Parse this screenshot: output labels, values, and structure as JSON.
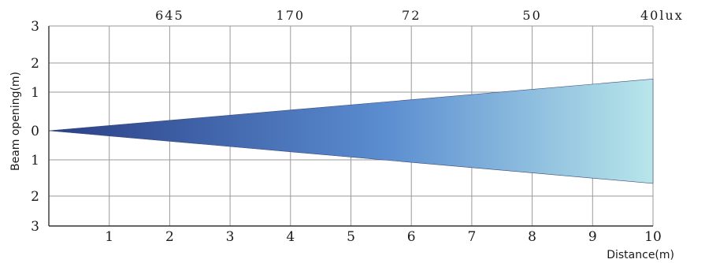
{
  "chart_data": {
    "type": "area",
    "title": "",
    "xlabel": "Distance(m)",
    "ylabel": "Beam opening(m)",
    "x_ticks": [
      "1",
      "2",
      "3",
      "4",
      "5",
      "6",
      "7",
      "8",
      "9",
      "10"
    ],
    "y_ticks_top": [
      "3",
      "2",
      "1"
    ],
    "y_tick_zero": "0",
    "y_ticks_bottom": [
      "1",
      "2",
      "3"
    ],
    "xlim": [
      0,
      10
    ],
    "ylim": [
      -3,
      3
    ],
    "grid": true,
    "lux_labels": [
      {
        "x": 2,
        "text": "645"
      },
      {
        "x": 4,
        "text": "170"
      },
      {
        "x": 6,
        "text": "72"
      },
      {
        "x": 8,
        "text": "50"
      },
      {
        "x": 10,
        "text": "40lux"
      }
    ],
    "beam": {
      "origin": {
        "x": 0,
        "y": 0
      },
      "end_x": 10,
      "end_upper": 1.45,
      "end_lower": -1.65
    },
    "colors": {
      "beam_start": "#2a3f86",
      "beam_mid": "#5a8cd0",
      "beam_end": "#b8e6ea",
      "grid": "#9a9a9a",
      "axis": "#333333"
    }
  }
}
